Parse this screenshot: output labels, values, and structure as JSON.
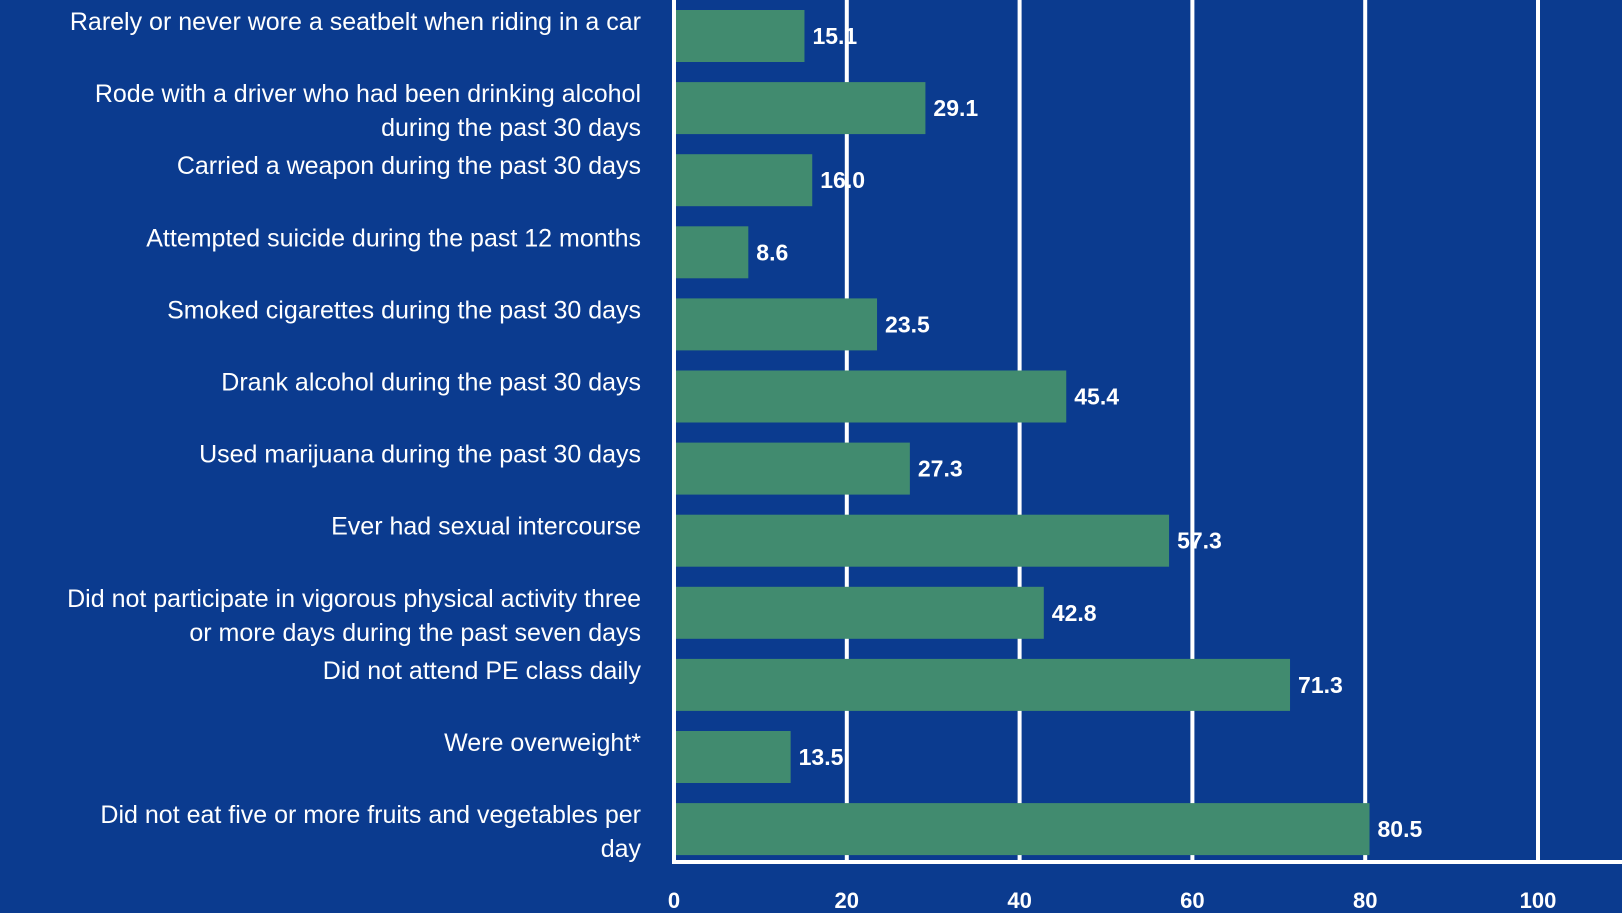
{
  "colors": {
    "background": "#0b3b8f",
    "bar": "#418b6f",
    "gridline": "#ffffff",
    "text": "#ffffff"
  },
  "chart_data": {
    "type": "bar",
    "orientation": "horizontal",
    "categories": [
      [
        "Rarely or never wore a seatbelt when riding in a car"
      ],
      [
        "Rode with a driver who had been drinking alcohol",
        "during the past 30 days"
      ],
      [
        "Carried a weapon during the past 30 days"
      ],
      [
        "Attempted suicide during the past 12 months"
      ],
      [
        "Smoked cigarettes during the past 30 days"
      ],
      [
        "Drank alcohol during the past 30 days"
      ],
      [
        "Used marijuana during the past 30 days"
      ],
      [
        "Ever had sexual intercourse"
      ],
      [
        "Did not participate in vigorous physical activity three",
        "or more days during the past seven days"
      ],
      [
        "Did not attend PE class daily"
      ],
      [
        "Were overweight*"
      ],
      [
        "Did not eat five or more fruits and vegetables per",
        "day"
      ]
    ],
    "values": [
      15.1,
      29.1,
      16.0,
      8.6,
      23.5,
      45.4,
      27.3,
      57.3,
      42.8,
      71.3,
      13.5,
      80.5
    ],
    "value_labels": [
      "15.1",
      "29.1",
      "16.0",
      "8.6",
      "23.5",
      "45.4",
      "27.3",
      "57.3",
      "42.8",
      "71.3",
      "13.5",
      "80.5"
    ],
    "xticks": [
      "0",
      "20",
      "40",
      "60",
      "80",
      "100"
    ],
    "xlim": [
      0,
      100
    ],
    "grid": true
  }
}
